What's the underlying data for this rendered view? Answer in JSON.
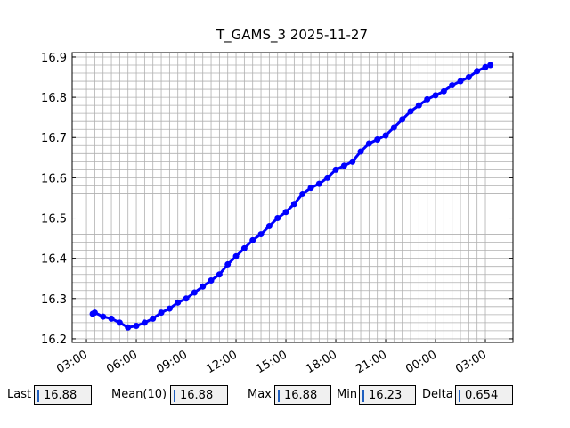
{
  "chart_data": {
    "type": "line",
    "title": "T_GAMS_3 2025-11-27",
    "x": [
      3.375,
      3.5,
      4.0,
      4.5,
      5.0,
      5.5,
      6.0,
      6.5,
      7.0,
      7.5,
      8.0,
      8.5,
      9.0,
      9.5,
      10.0,
      10.5,
      11.0,
      11.5,
      12.0,
      12.5,
      13.0,
      13.5,
      14.0,
      14.5,
      15.0,
      15.5,
      16.0,
      16.5,
      17.0,
      17.5,
      18.0,
      18.5,
      19.0,
      19.5,
      20.0,
      20.5,
      21.0,
      21.5,
      22.0,
      22.5,
      23.0,
      23.5,
      24.0,
      24.5,
      25.0,
      25.5,
      26.0,
      26.5,
      27.0,
      27.3
    ],
    "series": [
      {
        "name": "T_GAMS_3",
        "color": "#0000ff",
        "values": [
          16.262,
          16.265,
          16.255,
          16.25,
          16.24,
          16.228,
          16.232,
          16.24,
          16.25,
          16.265,
          16.275,
          16.29,
          16.3,
          16.315,
          16.33,
          16.345,
          16.36,
          16.385,
          16.405,
          16.425,
          16.445,
          16.46,
          16.48,
          16.5,
          16.515,
          16.535,
          16.56,
          16.575,
          16.585,
          16.6,
          16.62,
          16.63,
          16.64,
          16.665,
          16.685,
          16.695,
          16.705,
          16.725,
          16.745,
          16.765,
          16.78,
          16.795,
          16.805,
          16.815,
          16.83,
          16.84,
          16.85,
          16.865,
          16.875,
          16.88
        ]
      }
    ],
    "xlim": [
      2.14,
      28.66
    ],
    "ylim": [
      16.191,
      16.911
    ],
    "xticks": [
      {
        "value": 3,
        "label": "03:00"
      },
      {
        "value": 6,
        "label": "06:00"
      },
      {
        "value": 9,
        "label": "09:00"
      },
      {
        "value": 12,
        "label": "12:00"
      },
      {
        "value": 15,
        "label": "15:00"
      },
      {
        "value": 18,
        "label": "18:00"
      },
      {
        "value": 21,
        "label": "21:00"
      },
      {
        "value": 24,
        "label": "00:00"
      },
      {
        "value": 27,
        "label": "03:00"
      }
    ],
    "yticks": [
      {
        "value": 16.2,
        "label": "16.2"
      },
      {
        "value": 16.3,
        "label": "16.3"
      },
      {
        "value": 16.4,
        "label": "16.4"
      },
      {
        "value": 16.5,
        "label": "16.5"
      },
      {
        "value": 16.6,
        "label": "16.6"
      },
      {
        "value": 16.7,
        "label": "16.7"
      },
      {
        "value": 16.8,
        "label": "16.8"
      },
      {
        "value": 16.9,
        "label": "16.9"
      }
    ],
    "grid": true
  },
  "stats": [
    {
      "label": "Last",
      "value": "16.88"
    },
    {
      "label": "Mean(10)",
      "value": "16.88"
    },
    {
      "label": "Max",
      "value": "16.88"
    },
    {
      "label": "Min",
      "value": "16.23"
    },
    {
      "label": "Delta",
      "value": "0.654"
    }
  ]
}
